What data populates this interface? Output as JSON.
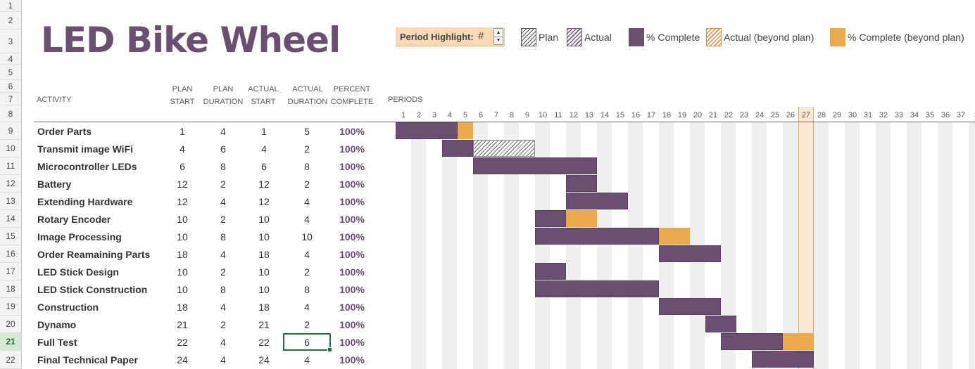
{
  "row_numbers": [
    "1",
    "2",
    "3",
    "4",
    "5",
    "6",
    "7",
    "8",
    "9",
    "10",
    "11",
    "12",
    "13",
    "14",
    "15",
    "16",
    "17",
    "18",
    "19",
    "20",
    "21",
    "22"
  ],
  "selected_row": "21",
  "title": "LED Bike Wheel",
  "period_highlight": {
    "label": "Period Highlight:",
    "value": "#",
    "highlighted_period": 27
  },
  "legend": [
    {
      "label": "Plan",
      "style": "plan-hatch"
    },
    {
      "label": "Actual",
      "style": "actual-hatch"
    },
    {
      "label": "% Complete",
      "style": "solid",
      "color": "#6b4f72"
    },
    {
      "label": "Actual (beyond plan)",
      "style": "orange-hatch"
    },
    {
      "label": "% Complete (beyond plan)",
      "style": "solid",
      "color": "#eaa94a"
    }
  ],
  "headers": {
    "activity": "ACTIVITY",
    "plan_start": [
      "PLAN",
      "START"
    ],
    "plan_duration": [
      "PLAN",
      "DURATION"
    ],
    "actual_start": [
      "ACTUAL",
      "START"
    ],
    "actual_duration": [
      "ACTUAL",
      "DURATION"
    ],
    "percent_complete": [
      "PERCENT",
      "COMPLETE"
    ],
    "periods": "PERIODS"
  },
  "periods": [
    "1",
    "2",
    "3",
    "4",
    "5",
    "6",
    "7",
    "8",
    "9",
    "10",
    "11",
    "12",
    "13",
    "14",
    "15",
    "16",
    "17",
    "18",
    "19",
    "20",
    "21",
    "22",
    "23",
    "24",
    "25",
    "26",
    "27",
    "28",
    "29",
    "30",
    "31",
    "32",
    "33",
    "34",
    "35",
    "36",
    "37",
    "3"
  ],
  "colors": {
    "complete": "#6b4f72",
    "beyond": "#eaa94a",
    "title": "#6b4f72"
  },
  "activities": [
    {
      "name": "Order Parts",
      "plan_start": "1",
      "plan_duration": "4",
      "actual_start": "1",
      "actual_duration": "5",
      "percent": "100%"
    },
    {
      "name": "Transmit image WiFi",
      "plan_start": "4",
      "plan_duration": "6",
      "actual_start": "4",
      "actual_duration": "2",
      "percent": "100%"
    },
    {
      "name": "Microcontroller LEDs",
      "plan_start": "6",
      "plan_duration": "8",
      "actual_start": "6",
      "actual_duration": "8",
      "percent": "100%"
    },
    {
      "name": "Battery",
      "plan_start": "12",
      "plan_duration": "2",
      "actual_start": "12",
      "actual_duration": "2",
      "percent": "100%"
    },
    {
      "name": "Extending Hardware",
      "plan_start": "12",
      "plan_duration": "4",
      "actual_start": "12",
      "actual_duration": "4",
      "percent": "100%"
    },
    {
      "name": "Rotary Encoder",
      "plan_start": "10",
      "plan_duration": "2",
      "actual_start": "10",
      "actual_duration": "4",
      "percent": "100%"
    },
    {
      "name": "Image Processing",
      "plan_start": "10",
      "plan_duration": "8",
      "actual_start": "10",
      "actual_duration": "10",
      "percent": "100%"
    },
    {
      "name": "Order Reamaining Parts",
      "plan_start": "18",
      "plan_duration": "4",
      "actual_start": "18",
      "actual_duration": "4",
      "percent": "100%"
    },
    {
      "name": "LED Stick Design",
      "plan_start": "10",
      "plan_duration": "2",
      "actual_start": "10",
      "actual_duration": "2",
      "percent": "100%"
    },
    {
      "name": "LED Stick Construction",
      "plan_start": "10",
      "plan_duration": "8",
      "actual_start": "10",
      "actual_duration": "8",
      "percent": "100%"
    },
    {
      "name": "Construction",
      "plan_start": "18",
      "plan_duration": "4",
      "actual_start": "18",
      "actual_duration": "4",
      "percent": "100%"
    },
    {
      "name": "Dynamo",
      "plan_start": "21",
      "plan_duration": "2",
      "actual_start": "21",
      "actual_duration": "2",
      "percent": "100%"
    },
    {
      "name": "Full Test",
      "plan_start": "22",
      "plan_duration": "4",
      "actual_start": "22",
      "actual_duration": "6",
      "percent": "100%"
    },
    {
      "name": "Final Technical Paper",
      "plan_start": "24",
      "plan_duration": "4",
      "actual_start": "24",
      "actual_duration": "4",
      "percent": "100%"
    }
  ]
}
